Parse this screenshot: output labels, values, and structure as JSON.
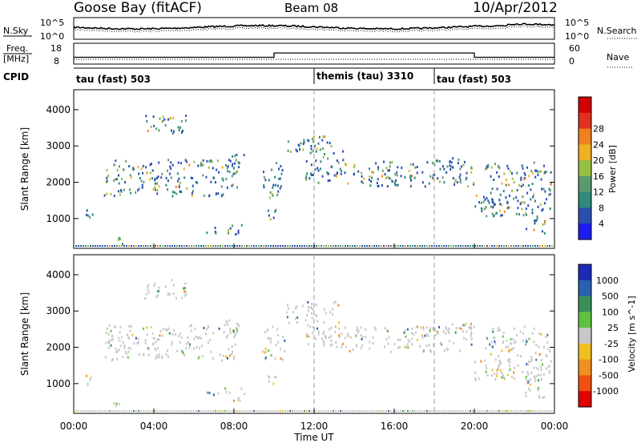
{
  "header": {
    "station": "Goose Bay (fitACF)",
    "beam": "Beam 08",
    "date": "10/Apr/2012"
  },
  "noise_panel": {
    "left_label": "N.Sky",
    "right_label": "N.Search",
    "ticks": [
      "10^5",
      "10^0"
    ]
  },
  "freq_panel": {
    "left_label_1": "Freq.",
    "left_label_2": "[MHz]",
    "left_ticks": [
      "18",
      "8"
    ],
    "right_label": "Nave",
    "right_ticks": [
      "60",
      "0"
    ],
    "segments": [
      {
        "start": 0,
        "end": 10,
        "freq": 10.5
      },
      {
        "start": 10,
        "end": 20,
        "freq": 13.5
      },
      {
        "start": 20,
        "end": 24,
        "freq": 10.5
      }
    ]
  },
  "cpid": {
    "label": "CPID",
    "segments": [
      {
        "name": "tau (fast) 503",
        "start": 0
      },
      {
        "name": "themis (tau) 3310",
        "start": 12
      },
      {
        "name": "tau (fast) 503",
        "start": 18
      }
    ]
  },
  "chart_data": [
    {
      "type": "heatmap",
      "title": "Power",
      "ylabel": "Slant Range [km]",
      "ylim": [
        180,
        4550
      ],
      "y_ticks": [
        "1000",
        "2000",
        "3000",
        "4000"
      ],
      "colorbar_label": "Power [dB]",
      "colorbar_ticks": [
        "4",
        "8",
        "12",
        "16",
        "20",
        "24",
        "28"
      ],
      "colorbar_colors": [
        "#1c1cf0",
        "#2a4fb0",
        "#2e8a7a",
        "#5a9a70",
        "#98c040",
        "#f0b020",
        "#f08020",
        "#e03020",
        "#d00000"
      ],
      "scatter_regions": [
        {
          "t": [
            0.6,
            1.2
          ],
          "r": [
            1000,
            1300
          ]
        },
        {
          "t": [
            1.5,
            8.2
          ],
          "r": [
            1650,
            2650
          ]
        },
        {
          "t": [
            1.8,
            2.6
          ],
          "r": [
            300,
            500
          ]
        },
        {
          "t": [
            3.5,
            5.6
          ],
          "r": [
            3350,
            3900
          ]
        },
        {
          "t": [
            6.5,
            7.2
          ],
          "r": [
            600,
            800
          ]
        },
        {
          "t": [
            7.4,
            8.5
          ],
          "r": [
            2400,
            2800
          ]
        },
        {
          "t": [
            7.5,
            8.5
          ],
          "r": [
            550,
            900
          ]
        },
        {
          "t": [
            9.4,
            10.5
          ],
          "r": [
            1600,
            2600
          ]
        },
        {
          "t": [
            9.5,
            10.2
          ],
          "r": [
            1000,
            1350
          ]
        },
        {
          "t": [
            10.5,
            11.5
          ],
          "r": [
            2700,
            3200
          ]
        },
        {
          "t": [
            11.5,
            13.5
          ],
          "r": [
            2000,
            3300
          ]
        },
        {
          "t": [
            13.5,
            20.0
          ],
          "r": [
            1900,
            2600
          ]
        },
        {
          "t": [
            18.0,
            20.0
          ],
          "r": [
            2400,
            2700
          ]
        },
        {
          "t": [
            20.0,
            21.8
          ],
          "r": [
            1100,
            1700
          ]
        },
        {
          "t": [
            20.5,
            23.8
          ],
          "r": [
            1100,
            2600
          ]
        },
        {
          "t": [
            22.5,
            23.5
          ],
          "r": [
            600,
            1200
          ]
        }
      ]
    },
    {
      "type": "heatmap",
      "title": "Velocity",
      "ylabel": "Slant Range [km]",
      "xlabel": "Time UT",
      "x_ticks": [
        "00:00",
        "04:00",
        "08:00",
        "12:00",
        "16:00",
        "20:00",
        "00:00"
      ],
      "ylim": [
        180,
        4550
      ],
      "y_ticks": [
        "1000",
        "2000",
        "3000",
        "4000"
      ],
      "colorbar_label": "Velocity [m s^-1]",
      "colorbar_ticks": [
        "1000",
        "500",
        "100",
        "25",
        "-25",
        "-100",
        "-500",
        "-1000"
      ],
      "colorbar_colors": [
        "#1c2ab8",
        "#2a60b0",
        "#3c8e58",
        "#60c040",
        "#c8c8c8",
        "#f0c020",
        "#f09020",
        "#f05010",
        "#e00000"
      ],
      "scatter_regions": [
        {
          "t": [
            0.6,
            1.2
          ],
          "r": [
            1000,
            1300
          ]
        },
        {
          "t": [
            1.5,
            8.2
          ],
          "r": [
            1650,
            2650
          ]
        },
        {
          "t": [
            1.8,
            2.6
          ],
          "r": [
            300,
            500
          ]
        },
        {
          "t": [
            3.5,
            5.6
          ],
          "r": [
            3350,
            3900
          ]
        },
        {
          "t": [
            6.5,
            7.2
          ],
          "r": [
            600,
            800
          ]
        },
        {
          "t": [
            7.4,
            8.5
          ],
          "r": [
            2400,
            2800
          ]
        },
        {
          "t": [
            7.5,
            8.5
          ],
          "r": [
            550,
            900
          ]
        },
        {
          "t": [
            9.4,
            10.5
          ],
          "r": [
            1600,
            2600
          ]
        },
        {
          "t": [
            9.5,
            10.2
          ],
          "r": [
            1000,
            1350
          ]
        },
        {
          "t": [
            10.5,
            11.5
          ],
          "r": [
            2700,
            3200
          ]
        },
        {
          "t": [
            11.5,
            13.5
          ],
          "r": [
            2000,
            3300
          ]
        },
        {
          "t": [
            13.5,
            20.0
          ],
          "r": [
            1900,
            2600
          ]
        },
        {
          "t": [
            18.0,
            20.0
          ],
          "r": [
            2400,
            2700
          ]
        },
        {
          "t": [
            20.0,
            21.8
          ],
          "r": [
            1100,
            1700
          ]
        },
        {
          "t": [
            20.5,
            23.8
          ],
          "r": [
            1100,
            2600
          ]
        },
        {
          "t": [
            22.5,
            23.5
          ],
          "r": [
            600,
            1200
          ]
        }
      ]
    }
  ]
}
